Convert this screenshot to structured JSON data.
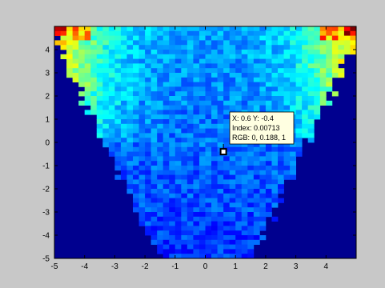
{
  "chart_data": {
    "type": "heatmap",
    "title": "",
    "xlabel": "",
    "ylabel": "",
    "xlim": [
      -5,
      5
    ],
    "ylim": [
      -5,
      5
    ],
    "colormap": "jet",
    "clim": [
      0,
      0.04
    ],
    "grid": false,
    "x_ticks": [
      "-5",
      "-4",
      "-3",
      "-2",
      "-1",
      "0",
      "1",
      "2",
      "3",
      "4"
    ],
    "y_ticks": [
      "4",
      "3",
      "2",
      "1",
      "0",
      "-1",
      "-2",
      "-3",
      "-4",
      "-5"
    ],
    "datatip": {
      "line1": "X: 0.6 Y: -0.4",
      "line2": "Index: 0.00713",
      "line3": "RGB: 0, 0.188, 1",
      "x": 0.6,
      "y": -0.4,
      "index": 0.00713
    }
  },
  "colors": {
    "figure_background": "#c8c8c8",
    "axes_background": "#00008f",
    "marker": "#000000",
    "tip_background": "#ffffe1"
  }
}
